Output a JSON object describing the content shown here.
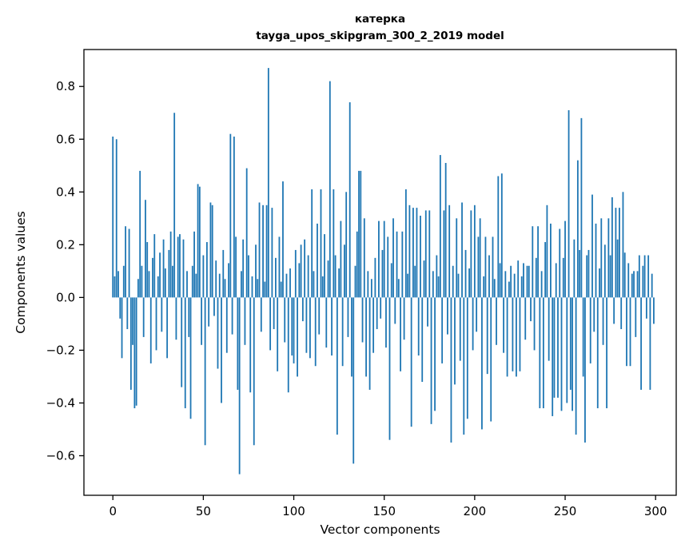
{
  "figure": {
    "title": "катерка",
    "subtitle": "tayga_upos_skipgram_300_2_2019 model"
  },
  "chart_data": {
    "type": "bar",
    "title": "катерка",
    "subtitle": "tayga_upos_skipgram_300_2_2019 model",
    "xlabel": "Vector components",
    "ylabel": "Components values",
    "xlim": [
      -16,
      311.4
    ],
    "ylim": [
      -0.75,
      0.94
    ],
    "xticks": [
      0,
      50,
      100,
      150,
      200,
      250,
      300
    ],
    "xtick_labels": [
      "0",
      "50",
      "100",
      "150",
      "200",
      "250",
      "300"
    ],
    "yticks": [
      -0.6,
      -0.4,
      -0.2,
      0.0,
      0.2,
      0.4,
      0.6,
      0.8
    ],
    "ytick_labels": [
      "−0.6",
      "−0.4",
      "−0.2",
      "0.0",
      "0.2",
      "0.4",
      "0.6",
      "0.8"
    ],
    "bar_color": "#1f77b4",
    "grid": false,
    "legend": null,
    "n_components": 300,
    "values": [
      0.61,
      0.08,
      0.6,
      0.1,
      -0.08,
      -0.23,
      0.12,
      0.27,
      -0.12,
      0.26,
      -0.35,
      -0.18,
      -0.42,
      -0.41,
      0.07,
      0.48,
      0.12,
      -0.15,
      0.37,
      0.21,
      0.1,
      -0.25,
      0.15,
      0.24,
      -0.2,
      0.08,
      0.17,
      -0.13,
      0.22,
      0.11,
      -0.23,
      0.18,
      0.25,
      0.12,
      0.7,
      -0.16,
      0.23,
      0.24,
      -0.34,
      0.22,
      -0.42,
      0.1,
      -0.15,
      -0.46,
      0.12,
      0.25,
      0.09,
      0.43,
      0.42,
      -0.18,
      0.16,
      -0.56,
      0.21,
      -0.11,
      0.36,
      0.35,
      -0.07,
      0.14,
      -0.27,
      0.09,
      -0.4,
      0.18,
      0.07,
      -0.21,
      0.13,
      0.62,
      -0.14,
      0.61,
      0.23,
      -0.35,
      -0.67,
      0.1,
      0.22,
      -0.18,
      0.49,
      0.16,
      -0.36,
      0.08,
      -0.56,
      0.2,
      0.07,
      0.36,
      -0.13,
      0.35,
      0.06,
      0.35,
      0.87,
      -0.2,
      0.34,
      -0.12,
      0.15,
      -0.28,
      0.23,
      0.06,
      0.44,
      -0.17,
      0.09,
      -0.36,
      0.11,
      -0.22,
      -0.25,
      0.18,
      -0.3,
      0.13,
      0.2,
      -0.09,
      0.22,
      -0.21,
      0.16,
      -0.23,
      0.41,
      0.1,
      -0.26,
      0.28,
      -0.14,
      0.41,
      0.08,
      0.24,
      -0.19,
      0.14,
      0.82,
      -0.22,
      0.41,
      0.16,
      -0.52,
      0.11,
      0.29,
      -0.26,
      0.2,
      0.4,
      -0.15,
      0.74,
      -0.3,
      -0.63,
      0.12,
      0.25,
      0.48,
      0.48,
      -0.17,
      0.3,
      -0.3,
      0.1,
      -0.35,
      0.07,
      -0.21,
      0.15,
      -0.12,
      0.29,
      -0.08,
      0.18,
      0.29,
      -0.19,
      0.23,
      -0.54,
      0.13,
      0.3,
      -0.1,
      0.25,
      0.07,
      -0.28,
      0.25,
      -0.16,
      0.41,
      0.09,
      0.35,
      -0.49,
      0.34,
      0.12,
      0.34,
      -0.22,
      0.31,
      -0.32,
      0.14,
      0.33,
      -0.11,
      0.33,
      -0.48,
      0.1,
      -0.43,
      0.16,
      0.08,
      0.54,
      -0.25,
      0.33,
      0.51,
      -0.14,
      0.35,
      -0.55,
      0.12,
      -0.33,
      0.3,
      0.09,
      -0.24,
      0.36,
      -0.52,
      0.18,
      -0.46,
      0.11,
      0.33,
      -0.2,
      0.35,
      -0.13,
      0.23,
      0.3,
      -0.5,
      0.08,
      0.23,
      -0.29,
      0.16,
      -0.47,
      0.23,
      0.07,
      -0.18,
      0.46,
      0.13,
      0.47,
      -0.21,
      0.1,
      -0.3,
      0.06,
      0.12,
      -0.28,
      0.09,
      -0.3,
      0.14,
      -0.28,
      0.08,
      0.13,
      -0.16,
      0.12,
      0.12,
      -0.09,
      0.27,
      -0.2,
      0.15,
      0.27,
      -0.42,
      0.1,
      -0.42,
      0.21,
      0.35,
      -0.24,
      0.28,
      -0.45,
      -0.38,
      0.13,
      -0.38,
      0.26,
      -0.43,
      0.15,
      0.29,
      -0.4,
      0.71,
      -0.35,
      -0.43,
      0.22,
      -0.52,
      0.52,
      0.18,
      0.68,
      -0.3,
      -0.55,
      0.16,
      0.18,
      -0.25,
      0.39,
      -0.13,
      0.28,
      -0.42,
      0.11,
      0.3,
      -0.18,
      0.2,
      -0.42,
      0.3,
      0.16,
      0.38,
      -0.1,
      0.34,
      0.22,
      0.34,
      -0.12,
      0.4,
      0.17,
      -0.26,
      0.13,
      -0.26,
      0.09,
      0.1,
      -0.15,
      0.1,
      0.16,
      -0.35,
      0.12,
      0.16,
      -0.08,
      0.16,
      -0.35,
      0.09,
      -0.1
    ]
  }
}
